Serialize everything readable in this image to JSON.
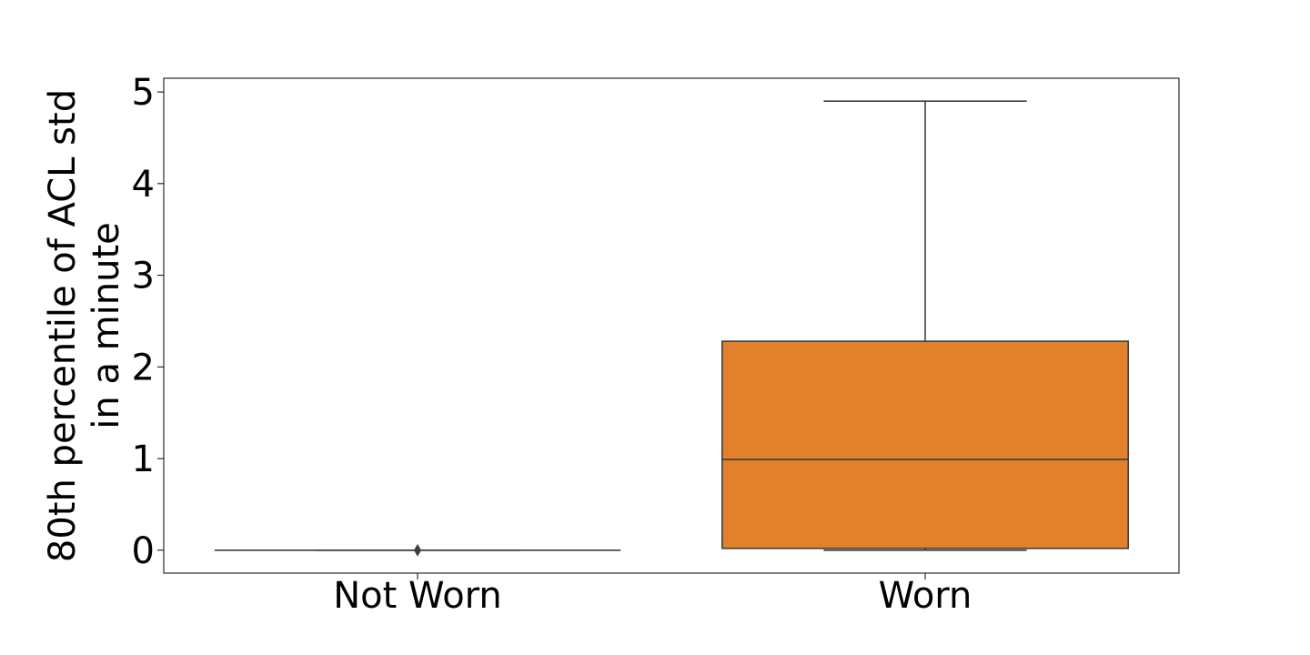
{
  "chart_data": {
    "type": "box",
    "title": "",
    "xlabel": "",
    "ylabel_lines": [
      "80th percentile of ACL std",
      "in a minute"
    ],
    "categories": [
      "Not Worn",
      "Worn"
    ],
    "ylim": [
      -0.25,
      5.15
    ],
    "yticks": [
      0,
      1,
      2,
      3,
      4,
      5
    ],
    "grid": false,
    "legend": "none",
    "boxes": [
      {
        "name": "Not Worn",
        "whisker_low": 0,
        "q1": 0,
        "median": 0,
        "q3": 0,
        "whisker_high": 0,
        "outliers": [
          0
        ],
        "color": "#3a75af"
      },
      {
        "name": "Worn",
        "whisker_low": 0,
        "q1": 0.02,
        "median": 0.99,
        "q3": 2.28,
        "whisker_high": 4.9,
        "outliers": [],
        "color": "#e1812c"
      }
    ],
    "line_color": "#3f3f3f"
  }
}
